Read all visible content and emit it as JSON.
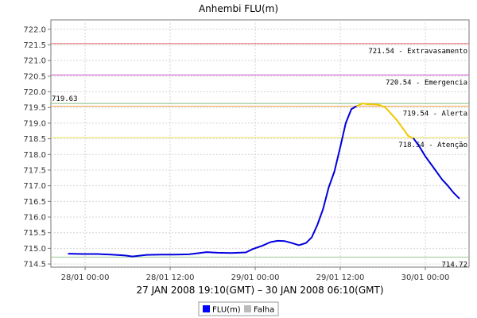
{
  "chart_data": {
    "type": "line",
    "title": "Anhembi FLU(m)",
    "xlabel": "27 JAN 2008 19:10(GMT) – 30 JAN 2008 06:10(GMT)",
    "ylabel": "",
    "ylim": [
      714.4,
      722.3
    ],
    "y_ticks": [
      "722.0",
      "721.5",
      "721.0",
      "720.5",
      "720.0",
      "719.5",
      "719.0",
      "718.5",
      "718.0",
      "717.5",
      "717.0",
      "716.5",
      "716.0",
      "715.5",
      "715.0",
      "714.5"
    ],
    "y_tick_values": [
      722.0,
      721.5,
      721.0,
      720.5,
      720.0,
      719.5,
      719.0,
      718.5,
      718.0,
      717.5,
      717.0,
      716.5,
      716.0,
      715.5,
      715.0,
      714.5
    ],
    "x_range_hours": [
      0,
      59
    ],
    "x_ticks": [
      {
        "label": "28/01 00:00",
        "hour": 4.83
      },
      {
        "label": "28/01 12:00",
        "hour": 16.83
      },
      {
        "label": "29/01 00:00",
        "hour": 28.83
      },
      {
        "label": "29/01 12:00",
        "hour": 40.83
      },
      {
        "label": "30/01 00:00",
        "hour": 52.83
      }
    ],
    "grid": true,
    "legend_placement": "bottom-center",
    "thresholds": [
      {
        "value": 721.54,
        "label": "721.54 - Extravasamento",
        "color": "#e06666"
      },
      {
        "value": 720.54,
        "label": "720.54 - Emergencia",
        "color": "#cc55cc"
      },
      {
        "value": 719.63,
        "label": "719.63",
        "color": "#88bb88"
      },
      {
        "value": 719.54,
        "label": "719.54 - Alerta",
        "color": "#f0a040"
      },
      {
        "value": 718.54,
        "label": "718.54 - Atenção",
        "color": "#e8e060"
      },
      {
        "value": 714.72,
        "label": "714.72",
        "color": "#99cc99"
      }
    ],
    "series": [
      {
        "name": "FLU(m)",
        "x": [
          2.5,
          4.5,
          6.5,
          8.5,
          10.5,
          11.5,
          13.5,
          15.5,
          17.5,
          19.5,
          21.0,
          22.0,
          23.5,
          25.5,
          27.5,
          28.5,
          29.8,
          31.0,
          32.0,
          33.0,
          34.0,
          35.0,
          36.0,
          36.8,
          37.6,
          38.4,
          39.2,
          40.0,
          40.8,
          41.6,
          42.4,
          43.2
        ],
        "y": [
          714.83,
          714.82,
          714.82,
          714.8,
          714.77,
          714.74,
          714.79,
          714.8,
          714.8,
          714.81,
          714.85,
          714.88,
          714.86,
          714.85,
          714.87,
          714.98,
          715.08,
          715.2,
          715.24,
          715.23,
          715.17,
          715.1,
          715.17,
          715.35,
          715.75,
          716.25,
          716.95,
          717.45,
          718.2,
          719.0,
          719.45,
          719.55
        ],
        "color": "#0000dd"
      },
      {
        "name": "",
        "x": [
          43.2,
          44.0,
          44.8,
          45.6,
          46.4,
          47.2,
          48.0,
          48.8,
          49.6,
          50.4,
          51.2
        ],
        "y": [
          719.55,
          719.63,
          719.6,
          719.6,
          719.58,
          719.5,
          719.3,
          719.1,
          718.85,
          718.6,
          718.5
        ],
        "color": "#f0c800"
      },
      {
        "name": "",
        "x": [
          51.2,
          52.0,
          52.8,
          53.6,
          54.4,
          55.2,
          56.0,
          56.8,
          57.6
        ],
        "y": [
          718.5,
          718.25,
          717.95,
          717.7,
          717.45,
          717.2,
          717.0,
          716.78,
          716.6
        ],
        "color": "#0000dd"
      }
    ],
    "legend": [
      {
        "label": "FLU(m)",
        "color": "#0000ff"
      },
      {
        "label": "Falha",
        "color": "#bbbbbb"
      }
    ]
  }
}
